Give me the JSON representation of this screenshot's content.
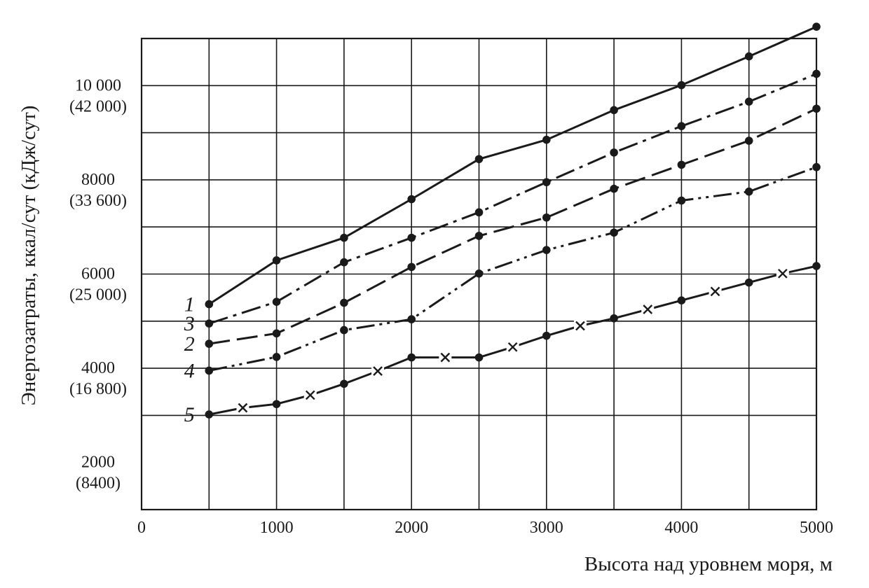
{
  "chart_data": {
    "type": "line",
    "title": "",
    "xlabel": "Высота над уровнем моря, м",
    "ylabel": "Энергозатраты, ккал/сут (кДж/сут)",
    "xlim": [
      0,
      5000
    ],
    "ylim": [
      1000,
      11000
    ],
    "x_ticks": [
      0,
      1000,
      2000,
      3000,
      4000,
      5000
    ],
    "x_tick_labels": [
      "0",
      "1000",
      "2000",
      "3000",
      "4000",
      "5000"
    ],
    "y_grid": [
      3000,
      4000,
      5000,
      6000,
      7000,
      8000,
      9000,
      10000
    ],
    "y_tick_labels": [
      {
        "value": 2000,
        "kcal": "2000",
        "kj": "(8400)"
      },
      {
        "value": 4000,
        "kcal": "4000",
        "kj": "(16 800)"
      },
      {
        "value": 6000,
        "kcal": "6000",
        "kj": "(25 000)"
      },
      {
        "value": 8000,
        "kcal": "8000",
        "kj": "(33 600)"
      },
      {
        "value": 10000,
        "kcal": "10 000",
        "kj": "(42 000)"
      }
    ],
    "grid": true,
    "series": [
      {
        "label": "1",
        "style": "solid",
        "x": [
          500,
          1000,
          1500,
          2000,
          2500,
          3000,
          3500,
          4000,
          4500,
          5000
        ],
        "y": [
          5360,
          6290,
          6770,
          7590,
          8440,
          8850,
          9480,
          10010,
          10620,
          11250
        ]
      },
      {
        "label": "3",
        "style": "dash-dot",
        "x": [
          500,
          1000,
          1500,
          2000,
          2500,
          3000,
          3500,
          4000,
          4500,
          5000
        ],
        "y": [
          4950,
          5410,
          6250,
          6770,
          7310,
          7950,
          8580,
          9140,
          9660,
          10250
        ]
      },
      {
        "label": "2",
        "style": "dashed",
        "x": [
          500,
          1000,
          1500,
          2000,
          2500,
          3000,
          3500,
          4000,
          4500,
          5000
        ],
        "y": [
          4520,
          4740,
          5390,
          6150,
          6810,
          7200,
          7810,
          8320,
          8830,
          9510
        ]
      },
      {
        "label": "4",
        "style": "dash-dot-dot",
        "x": [
          500,
          1000,
          1500,
          2000,
          2500,
          3000,
          3500,
          4000,
          4500,
          5000
        ],
        "y": [
          3950,
          4240,
          4810,
          5040,
          6010,
          6510,
          6880,
          7560,
          7750,
          8270
        ]
      },
      {
        "label": "5",
        "style": "solid-cross",
        "x": [
          500,
          750,
          1000,
          1250,
          1500,
          1750,
          2000,
          2250,
          2500,
          2750,
          3000,
          3250,
          3500,
          3750,
          4000,
          4250,
          4500,
          4750,
          5000
        ],
        "y": [
          3020,
          3160,
          3240,
          3430,
          3670,
          3940,
          4230,
          4230,
          4230,
          4450,
          4690,
          4900,
          5060,
          5250,
          5440,
          5630,
          5820,
          6010,
          6170
        ],
        "markers": [
          "dot",
          "cross",
          "dot",
          "cross",
          "dot",
          "cross",
          "dot",
          "cross",
          "dot",
          "cross",
          "dot",
          "cross",
          "dot",
          "cross",
          "dot",
          "cross",
          "dot",
          "cross",
          "dot"
        ]
      }
    ]
  }
}
